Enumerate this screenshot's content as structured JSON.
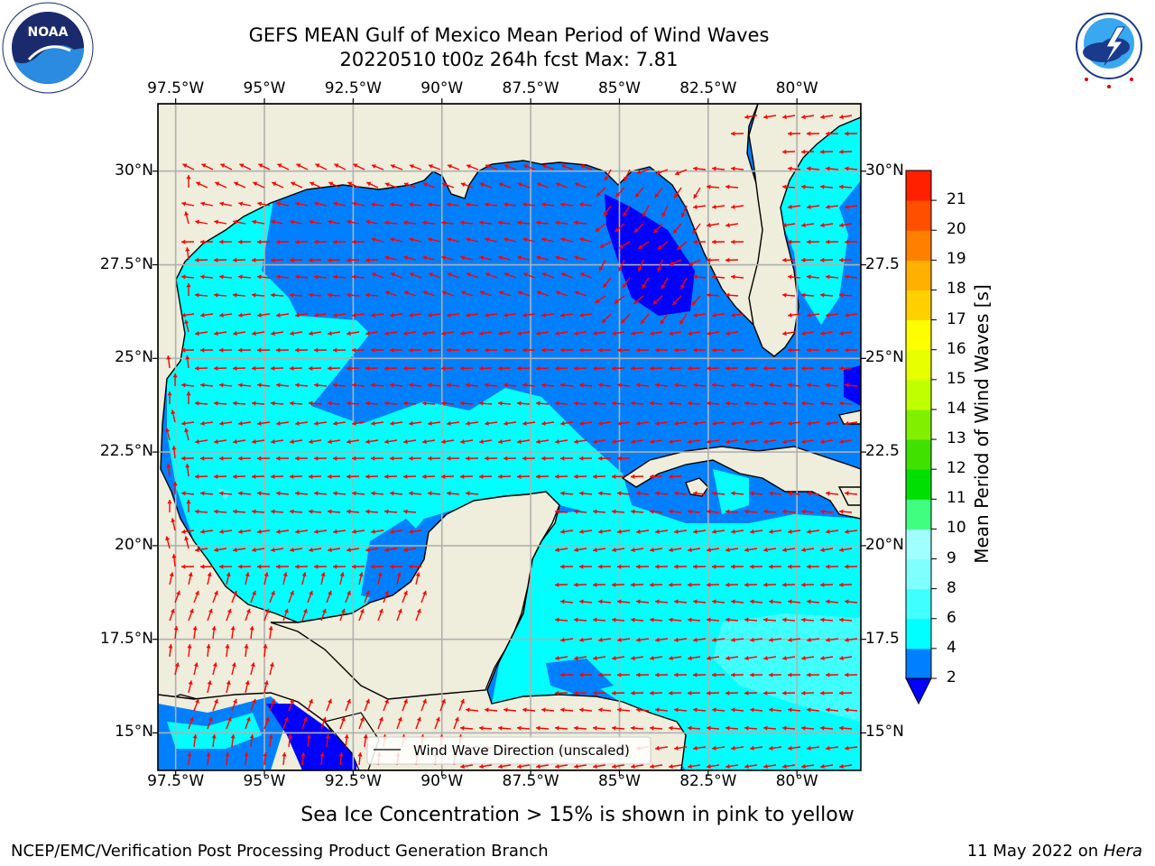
{
  "title": {
    "line1": "GEFS MEAN Gulf of Mexico Mean Period of Wind Waves",
    "line2": "20220510 t00z 264h fcst   Max: 7.81"
  },
  "logos": {
    "left": {
      "name": "NOAA",
      "ring_text": "NATIONAL OCEANIC AND ATMOSPHERIC ADMINISTRATION",
      "bottom_text": "U.S. DEPARTMENT OF COMMERCE"
    },
    "right": {
      "ring_text": "NATIONAL WEATHER SERVICE"
    }
  },
  "axes": {
    "lon_ticks": [
      "97.5°W",
      "95°W",
      "92.5°W",
      "90°W",
      "87.5°W",
      "85°W",
      "82.5°W",
      "80°W"
    ],
    "lat_ticks_left": [
      "30°N",
      "27.5°N",
      "25°N",
      "22.5°N",
      "20°N",
      "17.5°N",
      "15°N"
    ],
    "lat_ticks_right": [
      "30°N",
      "27.5",
      "25°N",
      "22.5",
      "20°N",
      "17.5",
      "15°N"
    ],
    "lon_range": [
      -98.0,
      -78.2
    ],
    "lat_range": [
      14.0,
      31.8
    ]
  },
  "legend": {
    "label": "Wind Wave Direction (unscaled)",
    "line_color": "#000000"
  },
  "colorbar": {
    "label": "Mean Period of Wind Waves [s]",
    "tick_labels": [
      "2",
      "4",
      "6",
      "8",
      "9",
      "10",
      "11",
      "12",
      "13",
      "14",
      "15",
      "16",
      "17",
      "18",
      "19",
      "20",
      "21"
    ],
    "levels": [
      2,
      4,
      6,
      8,
      9,
      10,
      11,
      12,
      13,
      14,
      15,
      16,
      17,
      18,
      19,
      20,
      21
    ],
    "colors": [
      "#0080ff",
      "#00ffff",
      "#40ffff",
      "#80ffff",
      "#a0ffff",
      "#40ff80",
      "#00e000",
      "#40e000",
      "#80f000",
      "#c0ff00",
      "#e8ff00",
      "#ffff00",
      "#ffd000",
      "#ffb000",
      "#ff8000",
      "#ff5000",
      "#ff2000"
    ],
    "under_color": "#0000ff",
    "extend": "min"
  },
  "map_colors": {
    "land": "#efeddb",
    "coast": "#000000",
    "grid": "#b0b0b0",
    "arrow": "#ff0000",
    "period_2_4": "#0080ff",
    "period_below_2": "#0000ff",
    "period_4_6": "#00ffff",
    "period_6_8": "#40ffff"
  },
  "note": "Sea Ice Concentration > 15% is shown in pink to yellow",
  "footer": {
    "left": "NCEP/EMC/Verification Post Processing Product Generation Branch",
    "date": "11 May 2022 on",
    "host": "Hera"
  }
}
